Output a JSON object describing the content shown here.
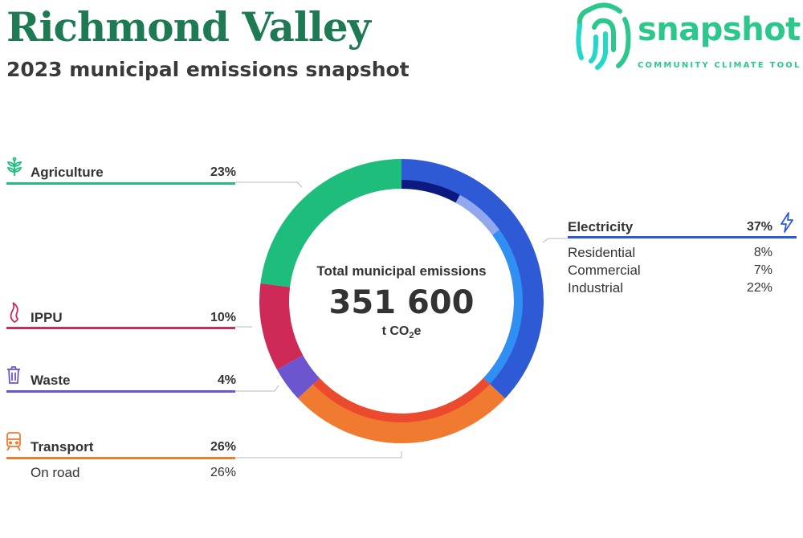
{
  "header": {
    "title": "Richmond Valley",
    "subtitle": "2023 municipal emissions snapshot"
  },
  "logo": {
    "name": "snapshot",
    "tagline": "COMMUNITY CLIMATE TOOL",
    "icon": "fingerprint-logo-icon"
  },
  "center": {
    "label": "Total municipal emissions",
    "value": "351 600",
    "unit_prefix": "t CO",
    "unit_sub": "2",
    "unit_suffix": "e"
  },
  "colors": {
    "agriculture": "#1ebd7c",
    "ippu": "#cf2a57",
    "waste": "#6c55cf",
    "transport": "#f07a30",
    "transport_inner": "#ec4a2e",
    "electricity": "#2f5ad5",
    "residential": "#0c1a80",
    "commercial": "#92a8ee",
    "industrial": "#2f8ff3"
  },
  "chart_data": {
    "type": "pie",
    "total": 351600,
    "unit": "t CO2e",
    "categories": [
      {
        "name": "Electricity",
        "value": 37,
        "label": "37%",
        "icon": "lightning-icon",
        "subcategories": [
          {
            "name": "Residential",
            "value": 8,
            "label": "8%"
          },
          {
            "name": "Commercial",
            "value": 7,
            "label": "7%"
          },
          {
            "name": "Industrial",
            "value": 22,
            "label": "22%"
          }
        ]
      },
      {
        "name": "Transport",
        "value": 26,
        "label": "26%",
        "icon": "train-icon",
        "subcategories": [
          {
            "name": "On road",
            "value": 26,
            "label": "26%"
          }
        ]
      },
      {
        "name": "Waste",
        "value": 4,
        "label": "4%",
        "icon": "bin-icon",
        "subcategories": []
      },
      {
        "name": "IPPU",
        "value": 10,
        "label": "10%",
        "icon": "flame-icon",
        "subcategories": []
      },
      {
        "name": "Agriculture",
        "value": 23,
        "label": "23%",
        "icon": "plant-icon",
        "subcategories": []
      }
    ]
  }
}
